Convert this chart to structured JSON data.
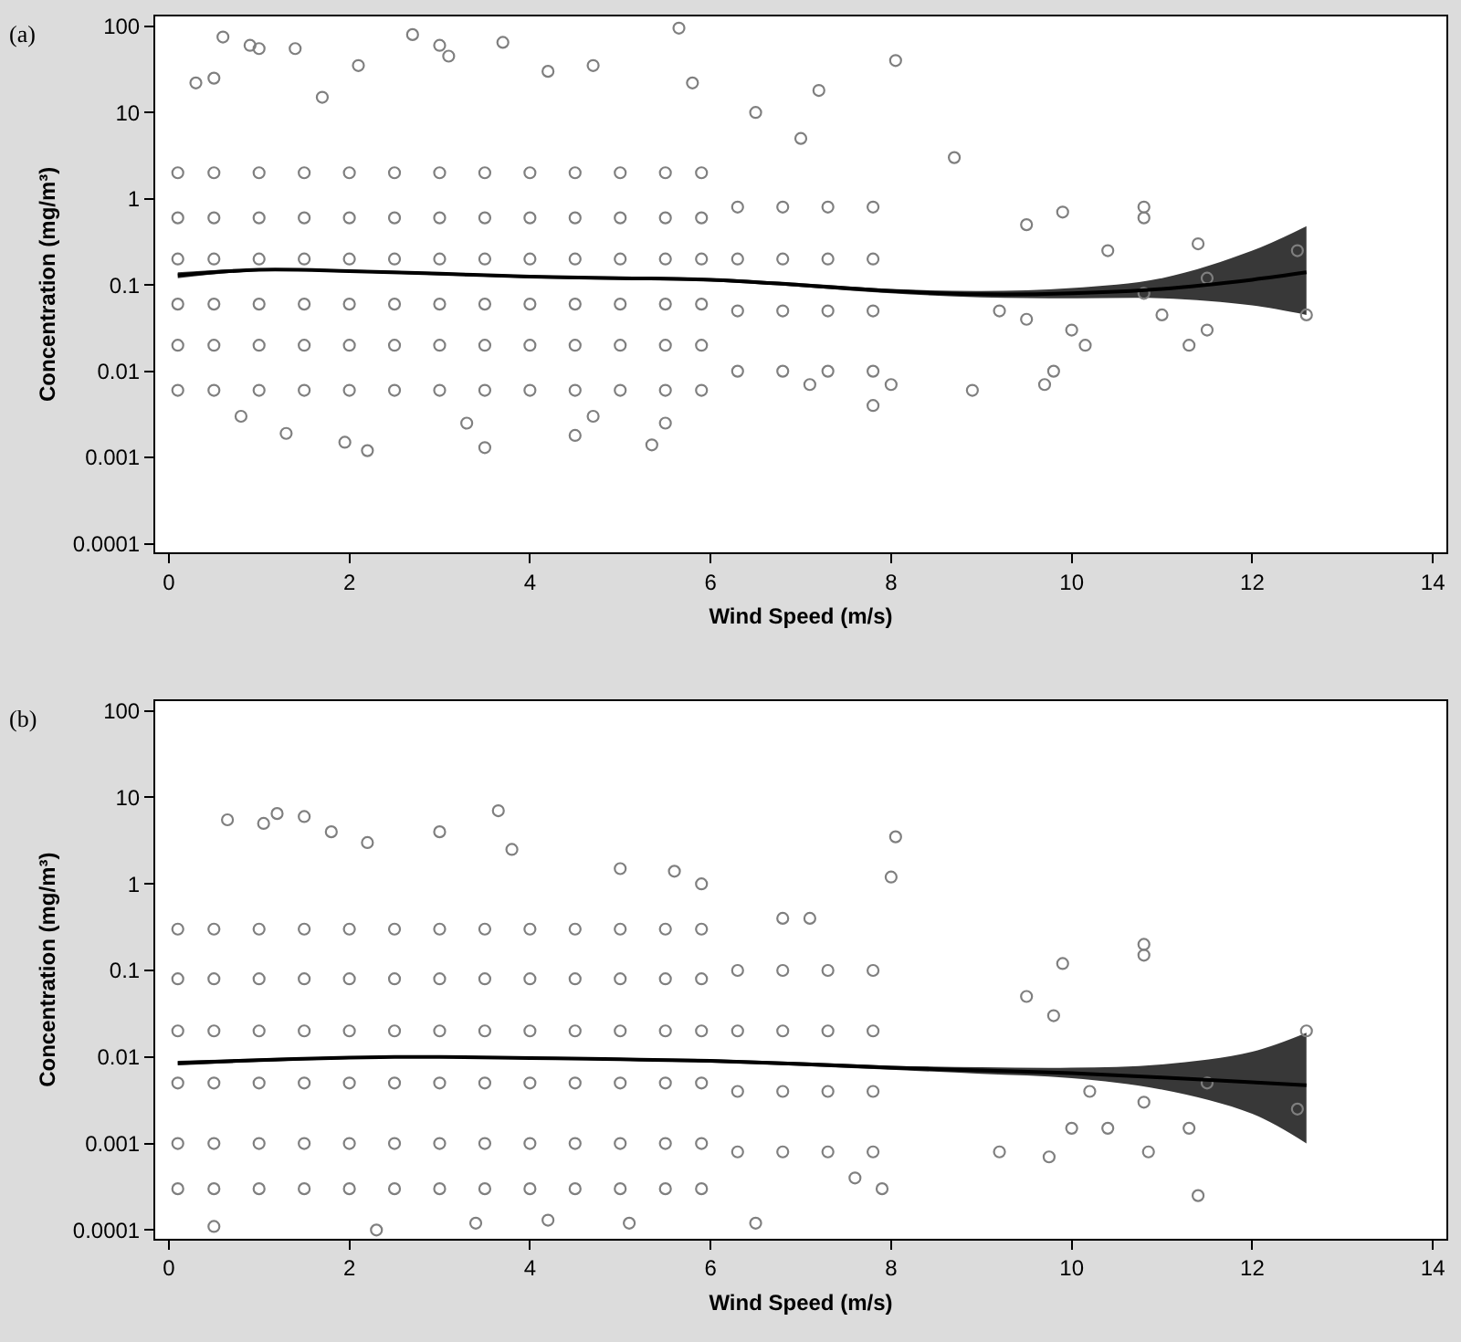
{
  "chart_data": [
    {
      "type": "scatter",
      "xlabel": "Wind Speed (m/s)",
      "ylabel": "Concentration (mg/m³)",
      "annotations": [
        "(a)"
      ],
      "log": "y",
      "grid": false,
      "xlim": [
        -0.15,
        14.15
      ],
      "xticks": [
        0,
        2,
        4,
        6,
        8,
        10,
        12,
        14
      ],
      "ylim": [
        8e-05,
        130
      ],
      "yticks": [
        0.0001,
        0.001,
        0.01,
        0.1,
        1,
        10,
        100
      ],
      "series": [
        {
          "marker": "circle",
          "color": "#7f7f7f",
          "x": [
            0.6,
            0.9,
            1.0,
            1.4,
            2.7,
            3.0,
            3.1,
            3.7,
            5.65,
            4.7,
            5.8,
            8.05,
            7.2,
            4.2,
            0.3,
            0.5,
            2.1,
            1.7,
            6.5,
            7.0,
            8.7,
            9.9,
            10.8,
            10.8,
            9.5,
            10.4,
            11.4,
            11.5,
            12.5,
            12.6,
            11.3,
            11.5,
            10.15,
            9.7,
            9.8,
            10.0,
            8.0,
            7.1,
            7.8,
            8.9,
            5.35,
            3.5,
            2.2,
            1.3,
            1.95,
            4.5,
            0.8,
            3.3,
            4.7,
            5.5,
            9.2,
            9.5,
            10.8,
            11.0,
            0.1,
            0.1,
            0.1,
            0.1,
            0.1,
            0.1,
            0.5,
            0.5,
            0.5,
            0.5,
            0.5,
            0.5,
            1,
            1,
            1,
            1,
            1,
            1,
            1.5,
            1.5,
            1.5,
            1.5,
            1.5,
            1.5,
            2,
            2,
            2,
            2,
            2,
            2,
            2.5,
            2.5,
            2.5,
            2.5,
            2.5,
            2.5,
            3,
            3,
            3,
            3,
            3,
            3,
            3.5,
            3.5,
            3.5,
            3.5,
            3.5,
            3.5,
            4,
            4,
            4,
            4,
            4,
            4,
            4.5,
            4.5,
            4.5,
            4.5,
            4.5,
            4.5,
            5,
            5,
            5,
            5,
            5,
            5,
            5.5,
            5.5,
            5.5,
            5.5,
            5.5,
            5.5,
            5.9,
            5.9,
            5.9,
            5.9,
            5.9,
            5.9,
            6.3,
            6.3,
            6.3,
            6.3,
            6.8,
            6.8,
            6.8,
            6.8,
            7.3,
            7.3,
            7.3,
            7.3,
            7.8,
            7.8,
            7.8,
            7.8
          ],
          "values": [
            75,
            60,
            55,
            55,
            80,
            60,
            45,
            65,
            95,
            35,
            22,
            40,
            18,
            30,
            22,
            25,
            35,
            15,
            10,
            5,
            3,
            0.7,
            0.8,
            0.6,
            0.5,
            0.25,
            0.3,
            0.12,
            0.25,
            0.045,
            0.02,
            0.03,
            0.02,
            0.007,
            0.01,
            0.03,
            0.007,
            0.007,
            0.004,
            0.006,
            0.0014,
            0.0013,
            0.0012,
            0.0019,
            0.0015,
            0.0018,
            0.003,
            0.0025,
            0.003,
            0.0025,
            0.05,
            0.04,
            0.08,
            0.045,
            0.006,
            0.02,
            0.06,
            0.2,
            0.6,
            2,
            0.006,
            0.02,
            0.06,
            0.2,
            0.6,
            2,
            0.006,
            0.02,
            0.06,
            0.2,
            0.6,
            2,
            0.006,
            0.02,
            0.06,
            0.2,
            0.6,
            2,
            0.006,
            0.02,
            0.06,
            0.2,
            0.6,
            2,
            0.006,
            0.02,
            0.06,
            0.2,
            0.6,
            2,
            0.006,
            0.02,
            0.06,
            0.2,
            0.6,
            2,
            0.006,
            0.02,
            0.06,
            0.2,
            0.6,
            2,
            0.006,
            0.02,
            0.06,
            0.2,
            0.6,
            2,
            0.006,
            0.02,
            0.06,
            0.2,
            0.6,
            2,
            0.006,
            0.02,
            0.06,
            0.2,
            0.6,
            2,
            0.006,
            0.02,
            0.06,
            0.2,
            0.6,
            2,
            0.006,
            0.02,
            0.06,
            0.2,
            0.6,
            2,
            0.01,
            0.05,
            0.2,
            0.8,
            0.01,
            0.05,
            0.2,
            0.8,
            0.01,
            0.05,
            0.2,
            0.8,
            0.01,
            0.05,
            0.2,
            0.8
          ]
        },
        {
          "type": "line",
          "color": "#000000",
          "x": [
            0.1,
            1,
            2,
            3,
            4,
            5,
            6,
            7,
            8,
            9,
            10,
            11,
            12,
            12.6
          ],
          "values": [
            0.13,
            0.15,
            0.145,
            0.135,
            0.125,
            0.12,
            0.115,
            0.1,
            0.085,
            0.078,
            0.08,
            0.09,
            0.115,
            0.14
          ],
          "lower": [
            0.12,
            0.145,
            0.14,
            0.13,
            0.12,
            0.115,
            0.11,
            0.095,
            0.08,
            0.072,
            0.07,
            0.07,
            0.058,
            0.045
          ],
          "upper": [
            0.14,
            0.155,
            0.15,
            0.14,
            0.13,
            0.125,
            0.12,
            0.105,
            0.09,
            0.085,
            0.092,
            0.12,
            0.25,
            0.48
          ]
        }
      ]
    },
    {
      "type": "scatter",
      "xlabel": "Wind Speed (m/s)",
      "ylabel": "Concentration (mg/m³)",
      "annotations": [
        "(b)"
      ],
      "log": "y",
      "grid": false,
      "xlim": [
        -0.15,
        14.15
      ],
      "xticks": [
        0,
        2,
        4,
        6,
        8,
        10,
        12,
        14
      ],
      "ylim": [
        8e-05,
        130
      ],
      "yticks": [
        0.0001,
        0.001,
        0.01,
        0.1,
        1,
        10,
        100
      ],
      "series": [
        {
          "marker": "circle",
          "color": "#7f7f7f",
          "x": [
            0.65,
            1.05,
            1.2,
            1.5,
            1.8,
            2.2,
            3.0,
            3.65,
            3.8,
            5.0,
            5.6,
            5.9,
            8.05,
            8.0,
            7.1,
            6.8,
            9.9,
            10.8,
            10.8,
            9.5,
            9.8,
            12.6,
            12.5,
            11.5,
            11.4,
            11.3,
            10.0,
            10.4,
            10.85,
            9.75,
            9.2,
            7.6,
            7.9,
            6.5,
            5.1,
            4.2,
            2.3,
            0.5,
            3.4,
            10.8,
            10.2,
            0.1,
            0.1,
            0.1,
            0.1,
            0.1,
            0.1,
            0.5,
            0.5,
            0.5,
            0.5,
            0.5,
            0.5,
            1,
            1,
            1,
            1,
            1,
            1,
            1.5,
            1.5,
            1.5,
            1.5,
            1.5,
            1.5,
            2,
            2,
            2,
            2,
            2,
            2,
            2.5,
            2.5,
            2.5,
            2.5,
            2.5,
            2.5,
            3,
            3,
            3,
            3,
            3,
            3,
            3.5,
            3.5,
            3.5,
            3.5,
            3.5,
            3.5,
            4,
            4,
            4,
            4,
            4,
            4,
            4.5,
            4.5,
            4.5,
            4.5,
            4.5,
            4.5,
            5,
            5,
            5,
            5,
            5,
            5,
            5.5,
            5.5,
            5.5,
            5.5,
            5.5,
            5.5,
            5.9,
            5.9,
            5.9,
            5.9,
            5.9,
            5.9,
            6.3,
            6.3,
            6.3,
            6.3,
            6.8,
            6.8,
            6.8,
            6.8,
            7.3,
            7.3,
            7.3,
            7.3,
            7.8,
            7.8,
            7.8,
            7.8
          ],
          "values": [
            5.5,
            5,
            6.5,
            6,
            4,
            3,
            4,
            7,
            2.5,
            1.5,
            1.4,
            1,
            3.5,
            1.2,
            0.4,
            0.4,
            0.12,
            0.2,
            0.15,
            0.05,
            0.03,
            0.02,
            0.0025,
            0.005,
            0.00025,
            0.0015,
            0.0015,
            0.0015,
            0.0008,
            0.0007,
            0.0008,
            0.0004,
            0.0003,
            0.00012,
            0.00012,
            0.00013,
            0.0001,
            0.00011,
            0.00012,
            0.003,
            0.004,
            0.0003,
            0.001,
            0.005,
            0.02,
            0.08,
            0.3,
            0.0003,
            0.001,
            0.005,
            0.02,
            0.08,
            0.3,
            0.0003,
            0.001,
            0.005,
            0.02,
            0.08,
            0.3,
            0.0003,
            0.001,
            0.005,
            0.02,
            0.08,
            0.3,
            0.0003,
            0.001,
            0.005,
            0.02,
            0.08,
            0.3,
            0.0003,
            0.001,
            0.005,
            0.02,
            0.08,
            0.3,
            0.0003,
            0.001,
            0.005,
            0.02,
            0.08,
            0.3,
            0.0003,
            0.001,
            0.005,
            0.02,
            0.08,
            0.3,
            0.0003,
            0.001,
            0.005,
            0.02,
            0.08,
            0.3,
            0.0003,
            0.001,
            0.005,
            0.02,
            0.08,
            0.3,
            0.0003,
            0.001,
            0.005,
            0.02,
            0.08,
            0.3,
            0.0003,
            0.001,
            0.005,
            0.02,
            0.08,
            0.3,
            0.0003,
            0.001,
            0.005,
            0.02,
            0.08,
            0.3,
            0.0008,
            0.004,
            0.02,
            0.1,
            0.0008,
            0.004,
            0.02,
            0.1,
            0.0008,
            0.004,
            0.02,
            0.1,
            0.0008,
            0.004,
            0.02,
            0.1
          ]
        },
        {
          "type": "line",
          "color": "#000000",
          "x": [
            0.1,
            1,
            2,
            2.5,
            3,
            4,
            5,
            6,
            7,
            8,
            9,
            10,
            11,
            12,
            12.6
          ],
          "values": [
            0.0085,
            0.0092,
            0.0098,
            0.01,
            0.01,
            0.0097,
            0.0094,
            0.009,
            0.0083,
            0.0075,
            0.007,
            0.0065,
            0.0058,
            0.0051,
            0.0047
          ],
          "lower": [
            0.008,
            0.0088,
            0.0095,
            0.0097,
            0.0097,
            0.0094,
            0.0091,
            0.0086,
            0.0079,
            0.0071,
            0.0064,
            0.0057,
            0.0042,
            0.0022,
            0.001
          ],
          "upper": [
            0.009,
            0.0096,
            0.0101,
            0.0103,
            0.0103,
            0.01,
            0.0097,
            0.0094,
            0.0087,
            0.0079,
            0.0076,
            0.0075,
            0.0082,
            0.0115,
            0.019
          ]
        }
      ]
    }
  ]
}
